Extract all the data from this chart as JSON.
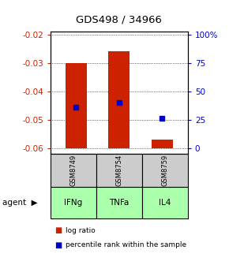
{
  "title": "GDS498 / 34966",
  "samples": [
    "GSM8749",
    "GSM8754",
    "GSM8759"
  ],
  "agents": [
    "IFNg",
    "TNFa",
    "IL4"
  ],
  "bar_bottoms": [
    -0.06,
    -0.06,
    -0.06
  ],
  "bar_tops": [
    -0.03,
    -0.026,
    -0.057
  ],
  "blue_marker_values": [
    -0.0455,
    -0.044,
    -0.0495
  ],
  "ylim_left": [
    -0.062,
    -0.019
  ],
  "yticks_left": [
    -0.06,
    -0.05,
    -0.04,
    -0.03,
    -0.02
  ],
  "ytick_labels_left": [
    "-0.06",
    "-0.05",
    "-0.04",
    "-0.03",
    "-0.02"
  ],
  "yticks_right_pct": [
    0,
    25,
    50,
    75,
    100
  ],
  "ytick_labels_right": [
    "0",
    "25",
    "50",
    "75",
    "100%"
  ],
  "bar_color": "#cc2200",
  "blue_color": "#0000cc",
  "agent_bg_color": "#aaffaa",
  "sample_bg_color": "#cccccc",
  "bar_width": 0.5,
  "legend_labels": [
    "log ratio",
    "percentile rank within the sample"
  ]
}
